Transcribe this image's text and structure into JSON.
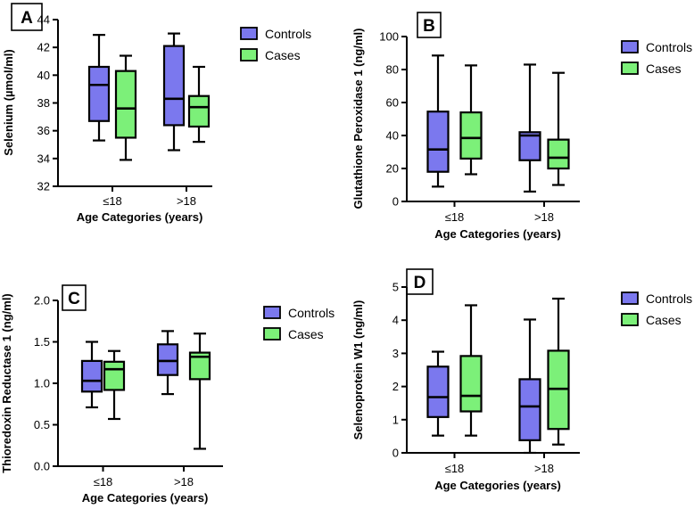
{
  "colors": {
    "controls": "#7b78ee",
    "cases": "#7cf079",
    "stroke": "#000000"
  },
  "chart_data": [
    {
      "panel": "A",
      "type": "box",
      "xlabel": "Age Categories (years)",
      "ylabel": "Selenium (µmol/ml)",
      "categories": [
        "≤18",
        ">18"
      ],
      "ylim": [
        32,
        44
      ],
      "yticks": [
        32,
        34,
        36,
        38,
        40,
        42,
        44
      ],
      "legend": [
        "Controls",
        "Cases"
      ],
      "series": [
        {
          "name": "Controls",
          "boxes": [
            {
              "min": 35.3,
              "q1": 36.7,
              "median": 39.3,
              "q3": 40.6,
              "max": 42.9
            },
            {
              "min": 34.6,
              "q1": 36.4,
              "median": 38.3,
              "q3": 42.1,
              "max": 43.0
            }
          ]
        },
        {
          "name": "Cases",
          "boxes": [
            {
              "min": 33.9,
              "q1": 35.5,
              "median": 37.6,
              "q3": 40.3,
              "max": 41.4
            },
            {
              "min": 35.2,
              "q1": 36.3,
              "median": 37.7,
              "q3": 38.5,
              "max": 40.6
            }
          ]
        }
      ]
    },
    {
      "panel": "B",
      "type": "box",
      "xlabel": "Age Categories (years)",
      "ylabel": "Glutathione Peroxidase 1 (ng/ml)",
      "categories": [
        "≤18",
        ">18"
      ],
      "ylim": [
        0,
        100
      ],
      "yticks": [
        0,
        20,
        40,
        60,
        80,
        100
      ],
      "legend": [
        "Controls",
        "Cases"
      ],
      "series": [
        {
          "name": "Controls",
          "boxes": [
            {
              "min": 9,
              "q1": 18,
              "median": 31.5,
              "q3": 54.5,
              "max": 88.5
            },
            {
              "min": 6,
              "q1": 25,
              "median": 40,
              "q3": 42,
              "max": 83
            }
          ]
        },
        {
          "name": "Cases",
          "boxes": [
            {
              "min": 16.5,
              "q1": 26,
              "median": 38.5,
              "q3": 54,
              "max": 82.5
            },
            {
              "min": 10,
              "q1": 20,
              "median": 26.5,
              "q3": 37.5,
              "max": 78
            }
          ]
        }
      ]
    },
    {
      "panel": "C",
      "type": "box",
      "xlabel": "Age Categories (years)",
      "ylabel": "Thioredoxin Reductase 1 (ng/ml)",
      "categories": [
        "≤18",
        ">18"
      ],
      "ylim": [
        0,
        2
      ],
      "yticks": [
        0,
        0.5,
        1,
        1.5,
        2
      ],
      "yticklabels": [
        "0.0",
        "0.5",
        "1.0",
        "1.5",
        "2.0"
      ],
      "legend": [
        "Controls",
        "Cases"
      ],
      "series": [
        {
          "name": "Controls",
          "boxes": [
            {
              "min": 0.71,
              "q1": 0.9,
              "median": 1.03,
              "q3": 1.27,
              "max": 1.5
            },
            {
              "min": 0.87,
              "q1": 1.1,
              "median": 1.27,
              "q3": 1.47,
              "max": 1.63
            }
          ]
        },
        {
          "name": "Cases",
          "boxes": [
            {
              "min": 0.57,
              "q1": 0.92,
              "median": 1.17,
              "q3": 1.26,
              "max": 1.39
            },
            {
              "min": 0.21,
              "q1": 1.05,
              "median": 1.32,
              "q3": 1.37,
              "max": 1.6
            }
          ]
        }
      ]
    },
    {
      "panel": "D",
      "type": "box",
      "xlabel": "Age Categories (years)",
      "ylabel": "Selenoprotein W1 (ng/ml)",
      "categories": [
        "≤18",
        ">18"
      ],
      "ylim": [
        0,
        5
      ],
      "yticks": [
        0,
        1,
        2,
        3,
        4,
        5
      ],
      "legend": [
        "Controls",
        "Cases"
      ],
      "series": [
        {
          "name": "Controls",
          "boxes": [
            {
              "min": 0.52,
              "q1": 1.08,
              "median": 1.68,
              "q3": 2.6,
              "max": 3.05
            },
            {
              "min": 0.0,
              "q1": 0.38,
              "median": 1.4,
              "q3": 2.22,
              "max": 4.02
            }
          ]
        },
        {
          "name": "Cases",
          "boxes": [
            {
              "min": 0.52,
              "q1": 1.25,
              "median": 1.72,
              "q3": 2.92,
              "max": 4.45
            },
            {
              "min": 0.25,
              "q1": 0.72,
              "median": 1.93,
              "q3": 3.08,
              "max": 4.65
            }
          ]
        }
      ]
    }
  ]
}
